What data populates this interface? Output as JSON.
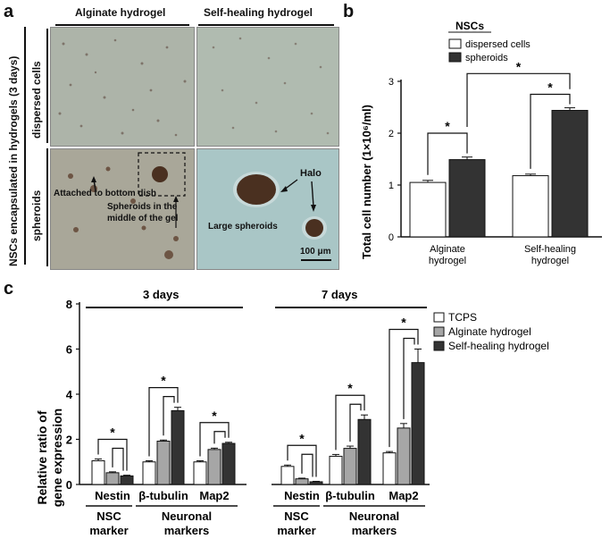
{
  "panel_a": {
    "letter": "a",
    "col_headers": [
      "Alginate hydrogel",
      "Self-healing hydrogel"
    ],
    "side_label": "NSCs encapsulated  in hydrogels (3 days)",
    "row_labels": [
      "dispersed cells",
      "spheroids"
    ],
    "annotations": {
      "attached": "Attached to bottom dish",
      "spheroids_middle_1": "Spheroids in the",
      "spheroids_middle_2": "middle of the gel",
      "halo": "Halo",
      "large": "Large spheroids",
      "scale": "100 μm"
    }
  },
  "panel_b": {
    "letter": "b",
    "legend_title": "NSCs",
    "legend": [
      "dispersed cells",
      "spheroids"
    ],
    "ylabel": "Total cell number (1×10⁶/ml)",
    "star": "*"
  },
  "panel_c": {
    "letter": "c",
    "time_labels": [
      "3 days",
      "7 days"
    ],
    "ylabel_1": "Relative ratio of",
    "ylabel_2": "gene expression",
    "legend": [
      "TCPS",
      "Alginate hydrogel",
      "Self-healing hydrogel"
    ],
    "marker_groups": [
      {
        "name_1": "NSC",
        "name_2": "marker"
      },
      {
        "name_1": "Neuronal",
        "name_2": "markers"
      },
      {
        "name_1": "NSC",
        "name_2": "marker"
      },
      {
        "name_1": "Neuronal",
        "name_2": "markers"
      }
    ],
    "star": "*"
  },
  "colors": {
    "white_bar": "#ffffff",
    "grey_bar": "#a6a6a6",
    "dark_bar": "#333333",
    "micro_bg": "#a9bcb3",
    "spheroid": "#4a3020"
  },
  "chart_data": [
    {
      "type": "bar",
      "categories": [
        "Alginate hydrogel",
        "Self-healing hydrogel"
      ],
      "series": [
        {
          "name": "dispersed cells",
          "values": [
            1.05,
            1.18
          ],
          "errors": [
            0.04,
            0.03
          ]
        },
        {
          "name": "spheroids",
          "values": [
            1.49,
            2.44
          ],
          "errors": [
            0.05,
            0.05
          ]
        }
      ],
      "ylim": [
        0,
        3
      ],
      "yticks": [
        0,
        1,
        2,
        3
      ],
      "grid": false,
      "legend_position": "top-left"
    },
    {
      "type": "bar",
      "categories": [
        "Nestin",
        "β-tubulin",
        "Map2",
        "Nestin",
        "β-tubulin",
        "Map2"
      ],
      "groups": [
        "3 days",
        "3 days",
        "3 days",
        "7 days",
        "7 days",
        "7 days"
      ],
      "series": [
        {
          "name": "TCPS",
          "values": [
            1.05,
            1.0,
            1.0,
            0.8,
            1.25,
            1.4
          ],
          "errors": [
            0.08,
            0.05,
            0.05,
            0.06,
            0.08,
            0.06
          ]
        },
        {
          "name": "Alginate hydrogel",
          "values": [
            0.52,
            1.92,
            1.55,
            0.25,
            1.6,
            2.5
          ],
          "errors": [
            0.04,
            0.05,
            0.06,
            0.03,
            0.1,
            0.2
          ]
        },
        {
          "name": "Self-healing hydrogel",
          "values": [
            0.38,
            3.27,
            1.82,
            0.12,
            2.88,
            5.4
          ],
          "errors": [
            0.03,
            0.15,
            0.05,
            0.02,
            0.2,
            0.6
          ]
        }
      ],
      "ylim": [
        0,
        8
      ],
      "yticks": [
        0,
        2,
        4,
        6,
        8
      ],
      "grid": false,
      "legend_position": "top-right"
    }
  ]
}
